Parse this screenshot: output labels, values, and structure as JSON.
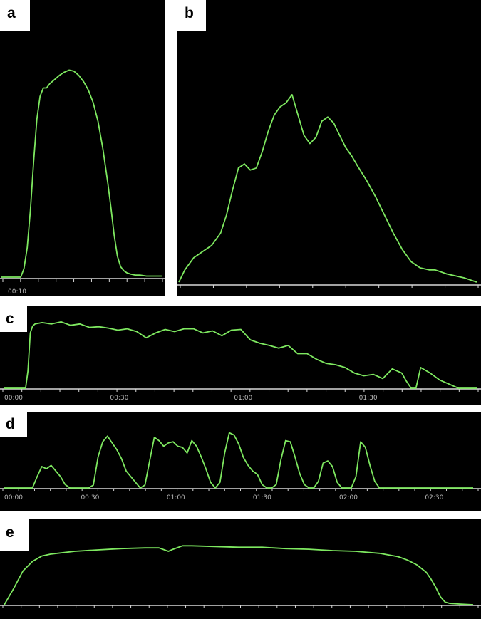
{
  "colors": {
    "background": "#000000",
    "trace": "#7ee860",
    "axis": "#d8d8d8",
    "tick_text": "#b8b8b8"
  },
  "panels": {
    "a": {
      "label": "a"
    },
    "b": {
      "label": "b"
    },
    "c": {
      "label": "c"
    },
    "d": {
      "label": "d"
    },
    "e": {
      "label": "e"
    }
  },
  "chart_data": [
    {
      "panel": "a",
      "type": "line",
      "ylim": [
        0,
        100
      ],
      "xlim": [
        0,
        100
      ],
      "tick_labels": [
        {
          "x": 4,
          "label": "00:10"
        }
      ],
      "x": [
        0,
        12,
        14,
        16,
        18,
        20,
        22,
        24,
        26,
        28,
        30,
        33,
        36,
        39,
        42,
        45,
        48,
        51,
        54,
        57,
        60,
        63,
        66,
        68,
        70,
        72,
        74,
        76,
        78,
        80,
        83,
        86,
        90,
        95,
        100
      ],
      "y": [
        0,
        0,
        4,
        14,
        32,
        55,
        75,
        86,
        90,
        90,
        92,
        94,
        96,
        97.5,
        98.5,
        98,
        96,
        93,
        89,
        83,
        74,
        61,
        45,
        33,
        20,
        10,
        5,
        3,
        2,
        1.5,
        1,
        1,
        0.5,
        0.5,
        0.5
      ]
    },
    {
      "panel": "b",
      "type": "line",
      "ylim": [
        0,
        100
      ],
      "xlim": [
        0,
        100
      ],
      "x": [
        0,
        2,
        5,
        8,
        11,
        14,
        16,
        18,
        20,
        22,
        24,
        26,
        28,
        30,
        32,
        34,
        36,
        38,
        40,
        42,
        44,
        46,
        48,
        50,
        52,
        54,
        56,
        58,
        60,
        63,
        66,
        69,
        72,
        75,
        78,
        81,
        84,
        86,
        88,
        90,
        93,
        96,
        100
      ],
      "y": [
        0,
        6,
        12,
        15,
        18,
        24,
        33,
        45,
        56,
        58,
        55,
        56,
        64,
        74,
        82,
        86,
        88,
        92,
        82,
        72,
        68,
        71,
        79,
        81,
        78,
        72,
        66,
        62,
        57,
        50,
        42,
        33,
        24,
        16,
        10,
        7,
        6,
        6,
        5,
        4,
        3,
        2,
        0
      ]
    },
    {
      "panel": "c",
      "type": "line",
      "ylim": [
        0,
        100
      ],
      "xlim": [
        0,
        100
      ],
      "tick_labels": [
        {
          "x": 0,
          "label": "00:00"
        },
        {
          "x": 24.3,
          "label": "00:30"
        },
        {
          "x": 50.5,
          "label": "01:00"
        },
        {
          "x": 76.9,
          "label": "01:30"
        }
      ],
      "x": [
        0,
        4.5,
        5,
        5.5,
        6,
        6.5,
        8,
        10,
        12,
        14,
        16,
        18,
        20,
        22,
        24,
        26,
        28,
        30,
        32,
        34,
        36,
        38,
        40,
        42,
        44,
        46,
        48,
        50,
        52,
        54,
        56,
        58,
        60,
        62,
        64,
        66,
        68,
        70,
        72,
        74,
        76,
        78,
        80,
        82,
        84,
        85,
        86,
        87,
        88,
        90,
        92,
        94,
        96,
        100
      ],
      "y": [
        0,
        0,
        25,
        80,
        90,
        93,
        95,
        93,
        96,
        91,
        93,
        88,
        89,
        87,
        84,
        86,
        82,
        73,
        80,
        85,
        82,
        86,
        86,
        80,
        83,
        76,
        84,
        85,
        70,
        65,
        62,
        58,
        62,
        50,
        50,
        42,
        36,
        34,
        30,
        22,
        18,
        20,
        14,
        28,
        22,
        10,
        0,
        0,
        30,
        22,
        12,
        6,
        0,
        0
      ]
    },
    {
      "panel": "d",
      "type": "line",
      "ylim": [
        0,
        100
      ],
      "xlim": [
        0,
        100
      ],
      "tick_labels": [
        {
          "x": 0,
          "label": "00:00"
        },
        {
          "x": 18.3,
          "label": "00:30"
        },
        {
          "x": 36.6,
          "label": "01:00"
        },
        {
          "x": 55.0,
          "label": "01:30"
        },
        {
          "x": 73.4,
          "label": "02:00"
        },
        {
          "x": 91.7,
          "label": "02:30"
        }
      ],
      "x": [
        0,
        6,
        7,
        8,
        9,
        10,
        11,
        12,
        13,
        14,
        18,
        19,
        20,
        21,
        22,
        23,
        24,
        25,
        26,
        29,
        30,
        31,
        32,
        33,
        34,
        35,
        36,
        37,
        38,
        39,
        40,
        41,
        42,
        43,
        44,
        45,
        46,
        47,
        48,
        49,
        50,
        51,
        52,
        53,
        54,
        55,
        56,
        57,
        58,
        59,
        60,
        61,
        62,
        63,
        64,
        65,
        66,
        67,
        68,
        69,
        70,
        71,
        72,
        73,
        74,
        75,
        76,
        77,
        78,
        79,
        80,
        81,
        82,
        83,
        84,
        85,
        86,
        100
      ],
      "y": [
        0,
        0,
        20,
        38,
        34,
        40,
        30,
        20,
        6,
        0,
        0,
        5,
        55,
        82,
        92,
        80,
        68,
        52,
        30,
        0,
        5,
        48,
        90,
        84,
        74,
        80,
        82,
        74,
        72,
        62,
        84,
        74,
        55,
        34,
        10,
        0,
        10,
        62,
        98,
        94,
        78,
        54,
        40,
        30,
        24,
        6,
        0,
        0,
        6,
        50,
        84,
        82,
        55,
        26,
        6,
        0,
        0,
        12,
        44,
        48,
        38,
        10,
        0,
        0,
        0,
        20,
        82,
        72,
        40,
        12,
        0,
        0,
        0,
        0,
        0,
        0,
        0,
        0
      ]
    },
    {
      "panel": "e",
      "type": "line",
      "ylim": [
        0,
        100
      ],
      "xlim": [
        0,
        100
      ],
      "x": [
        0,
        2,
        4,
        6,
        8,
        10,
        15,
        20,
        25,
        30,
        33,
        35,
        36,
        38,
        40,
        45,
        50,
        55,
        60,
        65,
        70,
        75,
        80,
        84,
        86,
        88,
        90,
        91,
        92,
        93,
        94,
        95,
        97,
        100
      ],
      "y": [
        0,
        24,
        50,
        64,
        72,
        75,
        79,
        81,
        83,
        84,
        84,
        79,
        82,
        87,
        87,
        86,
        85,
        85,
        83,
        82,
        80,
        79,
        76,
        71,
        66,
        59,
        48,
        38,
        26,
        12,
        4,
        2,
        1,
        0
      ]
    }
  ]
}
